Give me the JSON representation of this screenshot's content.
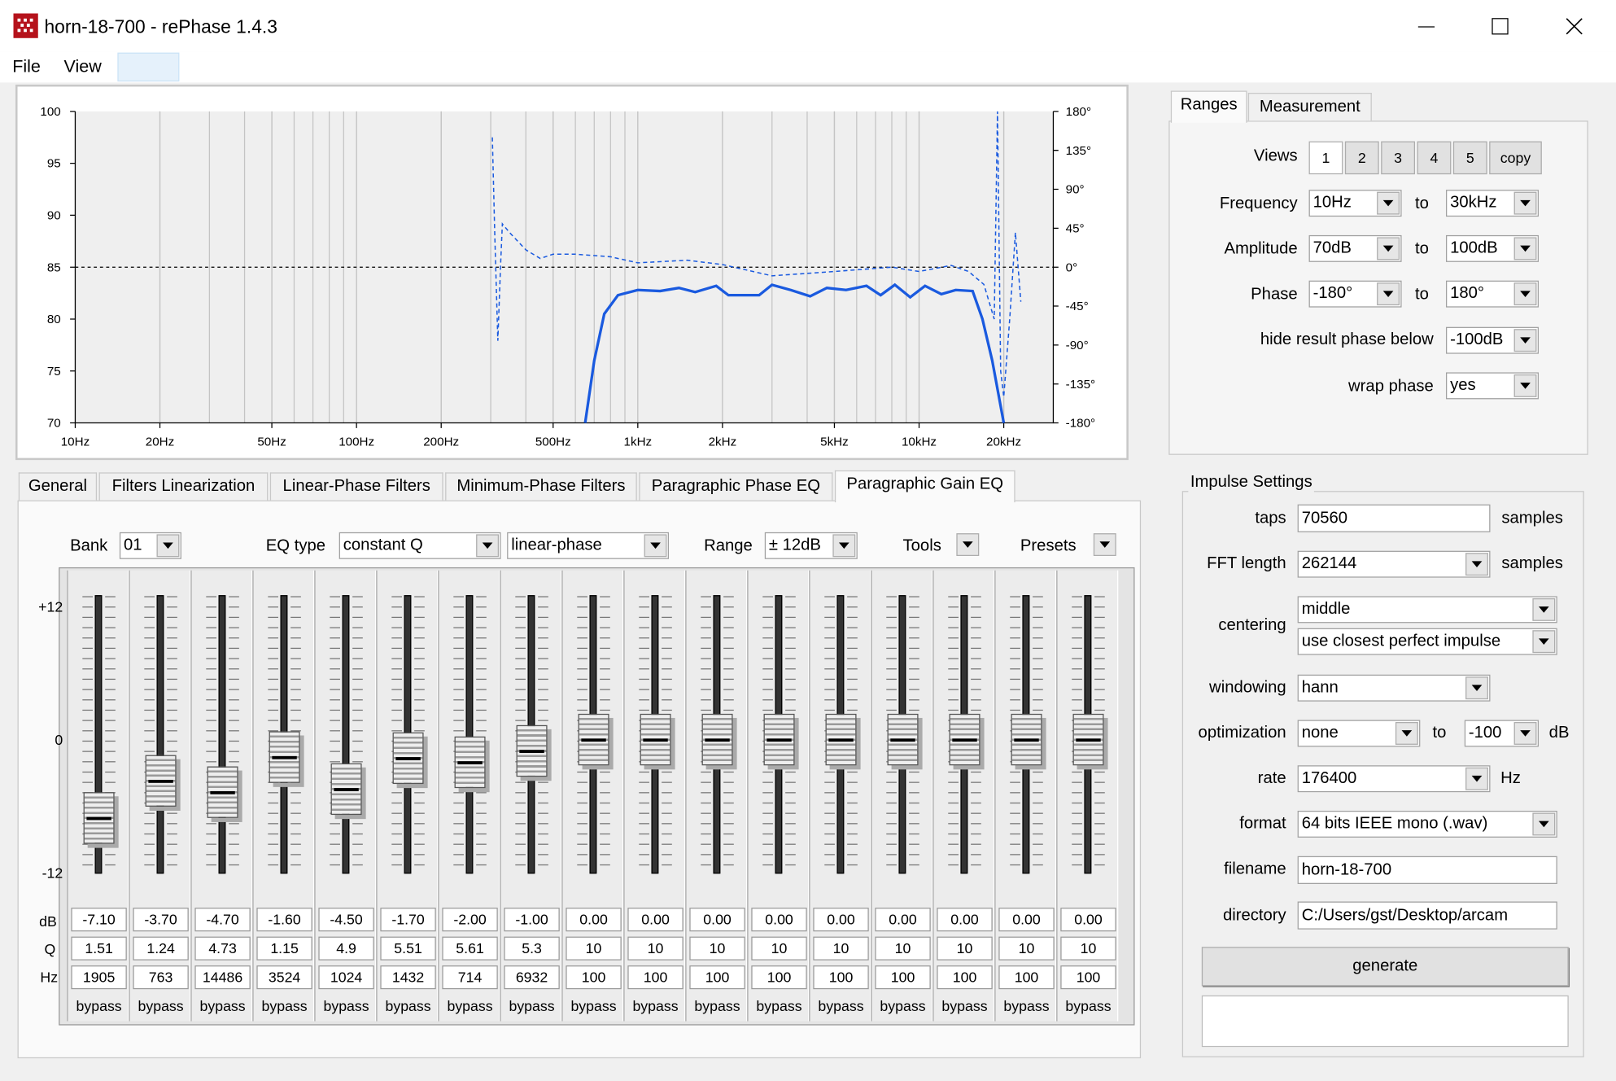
{
  "window": {
    "title": "horn-18-700  -  rePhase 1.4.3",
    "menu": [
      "File",
      "View"
    ]
  },
  "chart": {
    "type": "line",
    "xscale": "log",
    "xlim": [
      10,
      30000
    ],
    "xticks": [
      {
        "value": 10,
        "label": "10Hz"
      },
      {
        "value": 20,
        "label": "20Hz"
      },
      {
        "value": 50,
        "label": "50Hz"
      },
      {
        "value": 100,
        "label": "100Hz"
      },
      {
        "value": 200,
        "label": "200Hz"
      },
      {
        "value": 500,
        "label": "500Hz"
      },
      {
        "value": 1000,
        "label": "1kHz"
      },
      {
        "value": 2000,
        "label": "2kHz"
      },
      {
        "value": 5000,
        "label": "5kHz"
      },
      {
        "value": 10000,
        "label": "10kHz"
      },
      {
        "value": 20000,
        "label": "20kHz"
      }
    ],
    "ylim": [
      70,
      100
    ],
    "yticks": [
      70,
      75,
      80,
      85,
      90,
      95,
      100
    ],
    "y2lim": [
      -180,
      180
    ],
    "y2ticks": [
      {
        "value": -180,
        "label": "-180°"
      },
      {
        "value": -135,
        "label": "-135°"
      },
      {
        "value": -90,
        "label": "-90°"
      },
      {
        "value": -45,
        "label": "-45°"
      },
      {
        "value": 0,
        "label": "0°"
      },
      {
        "value": 45,
        "label": "45°"
      },
      {
        "value": 90,
        "label": "90°"
      },
      {
        "value": 135,
        "label": "135°"
      },
      {
        "value": 180,
        "label": "180°"
      }
    ],
    "grid": true,
    "series": [
      {
        "color": "#1a5adf",
        "x": [
          650,
          700,
          760,
          850,
          1000,
          1200,
          1400,
          1600,
          1900,
          2100,
          2700,
          3000,
          3500,
          4100,
          4700,
          5500,
          6500,
          7300,
          8200,
          9300,
          10500,
          12000,
          13500,
          15500,
          16800,
          18200,
          20000
        ],
        "values": [
          70,
          76,
          80.5,
          82.3,
          82.8,
          82.7,
          83.0,
          82.6,
          83.2,
          82.3,
          82.3,
          83.3,
          82.8,
          82.2,
          83.0,
          82.8,
          83.2,
          82.3,
          83.3,
          82.1,
          83.2,
          82.4,
          82.8,
          82.7,
          80,
          76,
          70
        ]
      },
      {
        "color": "#1a5adf",
        "axis": "y2",
        "dashed": true,
        "x": [
          304,
          310,
          318,
          325,
          330,
          350,
          400,
          450,
          500,
          600,
          800,
          1000,
          1500,
          2000,
          3000,
          5000,
          8000,
          10000,
          13000,
          15000,
          17000,
          18500,
          19000,
          19500,
          20000,
          21000,
          22000,
          23000
        ],
        "values": [
          150,
          40,
          -85,
          0,
          50,
          40,
          20,
          10,
          15,
          15,
          12,
          5,
          8,
          3,
          -10,
          -5,
          0,
          -5,
          2,
          -5,
          -20,
          -60,
          180,
          -120,
          -150,
          -60,
          40,
          -40
        ]
      }
    ]
  },
  "ranges": {
    "tabs": [
      "Ranges",
      "Measurement"
    ],
    "views_label": "Views",
    "views": [
      "1",
      "2",
      "3",
      "4",
      "5",
      "copy"
    ],
    "to": "to",
    "frequency": {
      "label": "Frequency",
      "from": "10Hz",
      "to": "30kHz"
    },
    "amplitude": {
      "label": "Amplitude",
      "from": "70dB",
      "to": "100dB"
    },
    "phase": {
      "label": "Phase",
      "from": "-180°",
      "to": "180°"
    },
    "hide_phase": {
      "label": "hide result phase below",
      "value": "-100dB"
    },
    "wrap_phase": {
      "label": "wrap phase",
      "value": "yes"
    }
  },
  "tabs": [
    "General",
    "Filters Linearization",
    "Linear-Phase Filters",
    "Minimum-Phase Filters",
    "Paragraphic Phase EQ",
    "Paragraphic Gain EQ"
  ],
  "eq": {
    "bank": {
      "label": "Bank",
      "value": "01"
    },
    "eq_type": {
      "label": "EQ type",
      "value": "constant Q",
      "mode": "linear-phase"
    },
    "range": {
      "label": "Range",
      "value": "± 12dB"
    },
    "tools": "Tools",
    "presets": "Presets",
    "scale": [
      {
        "value": 12,
        "label": "+12"
      },
      0,
      -12
    ],
    "row_labels": [
      "dB",
      "Q",
      "Hz"
    ],
    "bypass": "bypass",
    "channels": [
      {
        "db": "-7.10",
        "q": "1.51",
        "hz": "1905"
      },
      {
        "db": "-3.70",
        "q": "1.24",
        "hz": "763"
      },
      {
        "db": "-4.70",
        "q": "4.73",
        "hz": "14486"
      },
      {
        "db": "-1.60",
        "q": "1.15",
        "hz": "3524"
      },
      {
        "db": "-4.50",
        "q": "4.9",
        "hz": "1024"
      },
      {
        "db": "-1.70",
        "q": "5.51",
        "hz": "1432"
      },
      {
        "db": "-2.00",
        "q": "5.61",
        "hz": "714"
      },
      {
        "db": "-1.00",
        "q": "5.3",
        "hz": "6932"
      },
      {
        "db": "0.00",
        "q": "10",
        "hz": "100"
      },
      {
        "db": "0.00",
        "q": "10",
        "hz": "100"
      },
      {
        "db": "0.00",
        "q": "10",
        "hz": "100"
      },
      {
        "db": "0.00",
        "q": "10",
        "hz": "100"
      },
      {
        "db": "0.00",
        "q": "10",
        "hz": "100"
      },
      {
        "db": "0.00",
        "q": "10",
        "hz": "100"
      },
      {
        "db": "0.00",
        "q": "10",
        "hz": "100"
      },
      {
        "db": "0.00",
        "q": "10",
        "hz": "100"
      },
      {
        "db": "0.00",
        "q": "10",
        "hz": "100"
      }
    ]
  },
  "impulse": {
    "title": "Impulse Settings",
    "taps": {
      "label": "taps",
      "value": "70560",
      "unit": "samples"
    },
    "fft_length": {
      "label": "FFT length",
      "value": "262144",
      "unit": "samples"
    },
    "centering": {
      "label": "centering",
      "value": "middle",
      "mode": "use closest perfect impulse"
    },
    "windowing": {
      "label": "windowing",
      "value": "hann"
    },
    "optimization": {
      "label": "optimization",
      "value": "none",
      "to": "to",
      "limit": "-100",
      "unit": "dB"
    },
    "rate": {
      "label": "rate",
      "value": "176400",
      "unit": "Hz"
    },
    "format": {
      "label": "format",
      "value": "64 bits IEEE mono (.wav)"
    },
    "filename": {
      "label": "filename",
      "value": "horn-18-700"
    },
    "directory": {
      "label": "directory",
      "value": "C:/Users/gst/Desktop/arcam"
    },
    "generate": "generate"
  }
}
